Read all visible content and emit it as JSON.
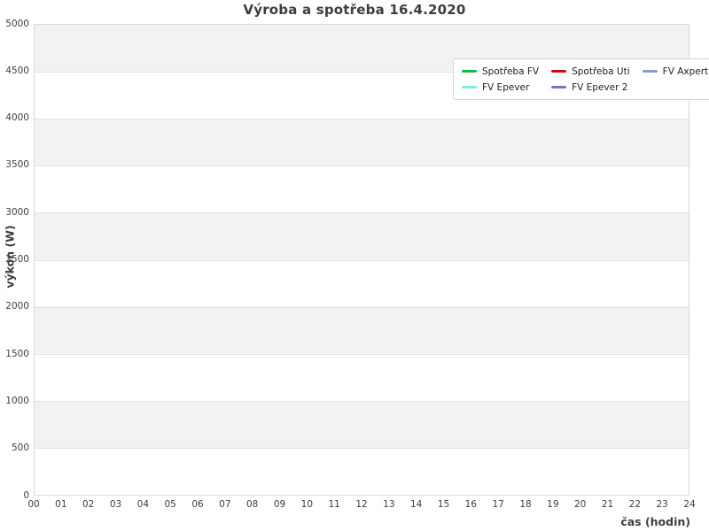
{
  "chart_data": {
    "type": "line",
    "title": "Výroba a spotřeba 16.4.2020",
    "xlabel": "čas (hodin)",
    "ylabel": "výkon (W)",
    "xlim": [
      0,
      24
    ],
    "ylim": [
      0,
      5000
    ],
    "x_ticks": [
      "00",
      "01",
      "02",
      "03",
      "04",
      "05",
      "06",
      "07",
      "08",
      "09",
      "10",
      "11",
      "12",
      "13",
      "14",
      "15",
      "16",
      "17",
      "18",
      "19",
      "20",
      "21",
      "22",
      "23",
      "24"
    ],
    "y_ticks": [
      0,
      500,
      1000,
      1500,
      2000,
      2500,
      3000,
      3500,
      4000,
      4500,
      5000
    ],
    "grid": "horizontal bands every 500 W alternating gray/white, no vertical gridlines",
    "legend_position": "top-right-inside",
    "legend_columns": 3,
    "legend_rows": 2,
    "series": [
      {
        "name": "Spotřeba FV",
        "color": "#00c832",
        "values": []
      },
      {
        "name": "FV Epever",
        "color": "#79f2e2",
        "values": []
      },
      {
        "name": "Spotřeba Uti",
        "color": "#e10000",
        "values": []
      },
      {
        "name": "FV Epever 2",
        "color": "#9164d8",
        "values": []
      },
      {
        "name": "FV Axpert",
        "color": "#7d9ed6",
        "values": []
      }
    ]
  },
  "colors": {
    "band_gray": "#f2f2f2",
    "plot_border": "#d8d8d8",
    "gridline": "#e2e2e2",
    "text": "#3d3d3d",
    "legend_border": "#d4d4d4",
    "background": "#ffffff"
  }
}
